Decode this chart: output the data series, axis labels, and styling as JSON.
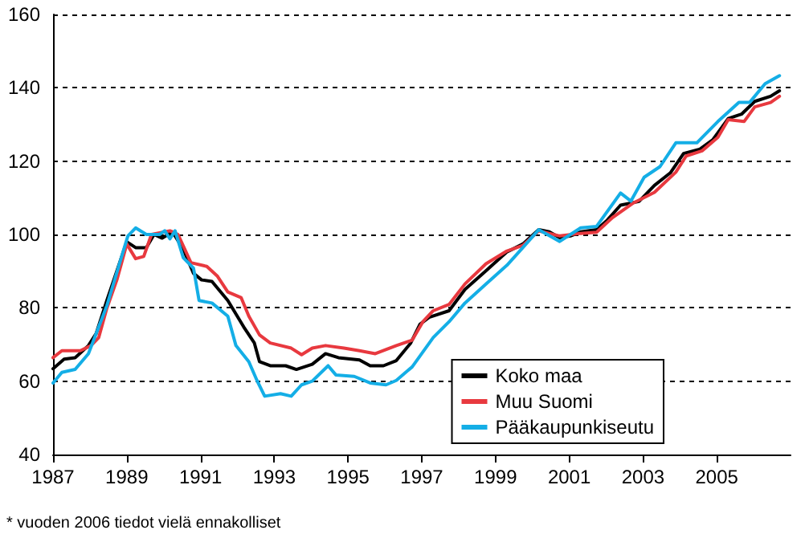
{
  "chart_data": {
    "type": "line",
    "xlim": [
      1987,
      2007
    ],
    "xticks": [
      1987,
      1989,
      1991,
      1993,
      1995,
      1997,
      1999,
      2001,
      2003,
      2005
    ],
    "ylim": [
      40,
      160
    ],
    "yticks": [
      40,
      60,
      80,
      100,
      120,
      140,
      160
    ],
    "grid": "y",
    "line_style": "solid",
    "marker": "none",
    "legend": "bottom right",
    "annotations": [
      "* vuoden 2006 tiedot vielä ennakolliset"
    ],
    "series": [
      {
        "name": "Koko maa",
        "color": "#000000",
        "x": [
          1987,
          1987.3,
          1987.6,
          1987.96,
          1988.17,
          1988.46,
          1989,
          1989.24,
          1989.53,
          1989.74,
          1989.96,
          1990.24,
          1990.53,
          1990.81,
          1991.03,
          1991.31,
          1991.74,
          1992.17,
          1992.46,
          1992.6,
          1992.89,
          1993.31,
          1993.6,
          1994.03,
          1994.39,
          1994.74,
          1995.31,
          1995.6,
          1995.96,
          1996.31,
          1996.7,
          1996.95,
          1997.2,
          1997.74,
          1998.17,
          1998.74,
          1999.3,
          1999.74,
          2000.17,
          2000.46,
          2000.74,
          2001.03,
          2001.31,
          2001.74,
          2002.03,
          2002.39,
          2002.89,
          2003.31,
          2003.74,
          2004.1,
          2004.53,
          2004.89,
          2005.31,
          2005.67,
          2006.03,
          2006.46,
          2006.7
        ],
        "values": [
          63.4,
          66,
          66.4,
          69.7,
          73,
          82,
          98,
          96.4,
          96.4,
          100,
          99,
          100.7,
          96,
          89.4,
          87.6,
          87.2,
          82,
          74.8,
          70.4,
          65.3,
          64.2,
          64.2,
          63.2,
          64.6,
          67.5,
          66.4,
          65.8,
          64.2,
          64.2,
          65.6,
          70.4,
          75.5,
          77.4,
          79.2,
          85,
          90.1,
          95.2,
          97.4,
          101.3,
          100.7,
          99.1,
          99.6,
          100.7,
          101.3,
          103.9,
          108,
          109,
          113.4,
          116.8,
          122.1,
          123.2,
          125.8,
          131.6,
          132.8,
          136.3,
          137.7,
          139.2
        ]
      },
      {
        "name": "Muu Suomi",
        "color": "#e8393f",
        "x": [
          1987,
          1987.24,
          1987.74,
          1988.03,
          1988.24,
          1988.46,
          1988.74,
          1989,
          1989.24,
          1989.46,
          1989.67,
          1990.17,
          1990.39,
          1990.74,
          1991.17,
          1991.46,
          1991.74,
          1992.1,
          1992.31,
          1992.6,
          1992.89,
          1993.46,
          1993.74,
          1994.03,
          1994.39,
          1994.89,
          1995.31,
          1995.74,
          1996.31,
          1996.74,
          1997.03,
          1997.31,
          1997.74,
          1998.17,
          1998.74,
          1999.31,
          1999.74,
          2000.17,
          2000.74,
          2001.31,
          2001.74,
          2002.17,
          2002.74,
          2003.31,
          2003.89,
          2004.17,
          2004.6,
          2005.03,
          2005.31,
          2005.74,
          2006.03,
          2006.46,
          2006.7
        ],
        "values": [
          66.4,
          68.3,
          68.3,
          69.7,
          71.9,
          79.9,
          87.9,
          97.4,
          93.4,
          94,
          100,
          101,
          100,
          92.3,
          91.3,
          88.6,
          84.3,
          82.8,
          77.7,
          72.6,
          70.4,
          69,
          67.2,
          69,
          69.7,
          69,
          68.3,
          67.5,
          69.7,
          71.2,
          76.2,
          79.2,
          80.9,
          86.5,
          92,
          95.5,
          97,
          101,
          99.6,
          100.3,
          100.6,
          104.6,
          108.6,
          111.5,
          117,
          121.4,
          122.8,
          126.5,
          131.3,
          130.8,
          134.8,
          136,
          137.7
        ]
      },
      {
        "name": "Pääkaupunkiseutu",
        "color": "#14aee6",
        "x": [
          1987,
          1987.24,
          1987.6,
          1987.96,
          1988.24,
          1988.46,
          1988.81,
          1989.03,
          1989.24,
          1989.53,
          1989.89,
          1990.03,
          1990.17,
          1990.31,
          1990.53,
          1990.81,
          1990.96,
          1991.31,
          1991.74,
          1991.96,
          1992.31,
          1992.53,
          1992.74,
          1993.17,
          1993.46,
          1993.74,
          1994.03,
          1994.46,
          1994.67,
          1995.17,
          1995.6,
          1996.03,
          1996.31,
          1996.74,
          1997.31,
          1997.74,
          1998.17,
          1998.74,
          1999.31,
          1999.74,
          2000.17,
          2000.74,
          2001.31,
          2001.74,
          2002.39,
          2002.67,
          2003.03,
          2003.46,
          2003.89,
          2004.46,
          2005.03,
          2005.6,
          2005.89,
          2006.31,
          2006.7
        ],
        "values": [
          59.5,
          62.4,
          63.2,
          67.5,
          74.8,
          80.6,
          92.3,
          99.6,
          101.8,
          100,
          100,
          101,
          98.8,
          101,
          93.7,
          90.8,
          82,
          81.3,
          77.7,
          69.7,
          65.3,
          60.2,
          55.9,
          56.6,
          55.9,
          59,
          60,
          64.2,
          61.7,
          61.3,
          59.5,
          59,
          60.2,
          63.9,
          71.9,
          76.2,
          81.3,
          86.5,
          91.6,
          96.4,
          101.3,
          98.1,
          101.8,
          102.2,
          111.3,
          109.1,
          115.6,
          118.5,
          125,
          125,
          130.8,
          136,
          136,
          141.1,
          143.3
        ]
      }
    ]
  }
}
